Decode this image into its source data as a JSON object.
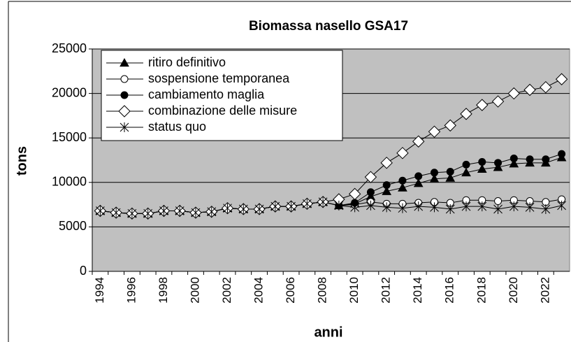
{
  "chart_data": {
    "type": "line",
    "title": "Biomassa nasello GSA17",
    "xlabel": "anni",
    "ylabel": "tons",
    "categories": [
      "1994",
      null,
      "1996",
      null,
      "1998",
      null,
      "2000",
      null,
      "2002",
      null,
      "2004",
      null,
      "2006",
      null,
      "2008",
      null,
      "2010",
      null,
      "2012",
      null,
      "2014",
      null,
      "2016",
      null,
      "2018",
      null,
      "2020",
      null,
      "2022",
      null
    ],
    "ylim": [
      0,
      25000
    ],
    "yticks": [
      0,
      5000,
      10000,
      15000,
      20000,
      25000
    ],
    "grid": true,
    "legend": "upper left",
    "series": [
      {
        "name": "ritiro definitivo",
        "color": "#000000",
        "marker": "triangle",
        "values": [
          6800,
          6600,
          6500,
          6500,
          6800,
          6800,
          6600,
          6700,
          7100,
          7000,
          7000,
          7300,
          7300,
          7600,
          7800,
          7400,
          7600,
          8400,
          9000,
          9400,
          9900,
          10400,
          10500,
          11100,
          11500,
          11700,
          12100,
          12200,
          12200,
          12800
        ]
      },
      {
        "name": "sospensione temporanea",
        "color": "#000000",
        "marker": "open-circle",
        "values": [
          6800,
          6600,
          6500,
          6500,
          6800,
          6800,
          6600,
          6700,
          7100,
          7000,
          7000,
          7300,
          7300,
          7600,
          7800,
          7400,
          7500,
          7800,
          7600,
          7600,
          7700,
          7800,
          7700,
          8000,
          8000,
          7900,
          8000,
          7900,
          7800,
          8100
        ]
      },
      {
        "name": "cambiamento maglia",
        "color": "#000000",
        "marker": "filled-circle",
        "values": [
          6800,
          6600,
          6500,
          6500,
          6800,
          6800,
          6600,
          6700,
          7100,
          7000,
          7000,
          7300,
          7300,
          7600,
          7800,
          7400,
          7700,
          8900,
          9700,
          10200,
          10700,
          11100,
          11200,
          12000,
          12300,
          12200,
          12700,
          12600,
          12600,
          13200
        ]
      },
      {
        "name": "combinazione delle misure",
        "color": "#000000",
        "marker": "open-diamond",
        "values": [
          6800,
          6600,
          6500,
          6500,
          6800,
          6800,
          6600,
          6700,
          7100,
          7000,
          7000,
          7300,
          7300,
          7600,
          7800,
          8100,
          8700,
          10600,
          12200,
          13300,
          14600,
          15700,
          16400,
          17700,
          18700,
          19100,
          20000,
          20400,
          20700,
          21600
        ]
      },
      {
        "name": "status quo",
        "color": "#000000",
        "marker": "asterisk",
        "values": [
          6800,
          6600,
          6500,
          6500,
          6800,
          6800,
          6600,
          6700,
          7100,
          7000,
          7000,
          7300,
          7300,
          7600,
          7800,
          7400,
          7200,
          7400,
          7200,
          7100,
          7300,
          7200,
          7000,
          7300,
          7300,
          7000,
          7300,
          7200,
          7000,
          7400
        ]
      }
    ]
  }
}
